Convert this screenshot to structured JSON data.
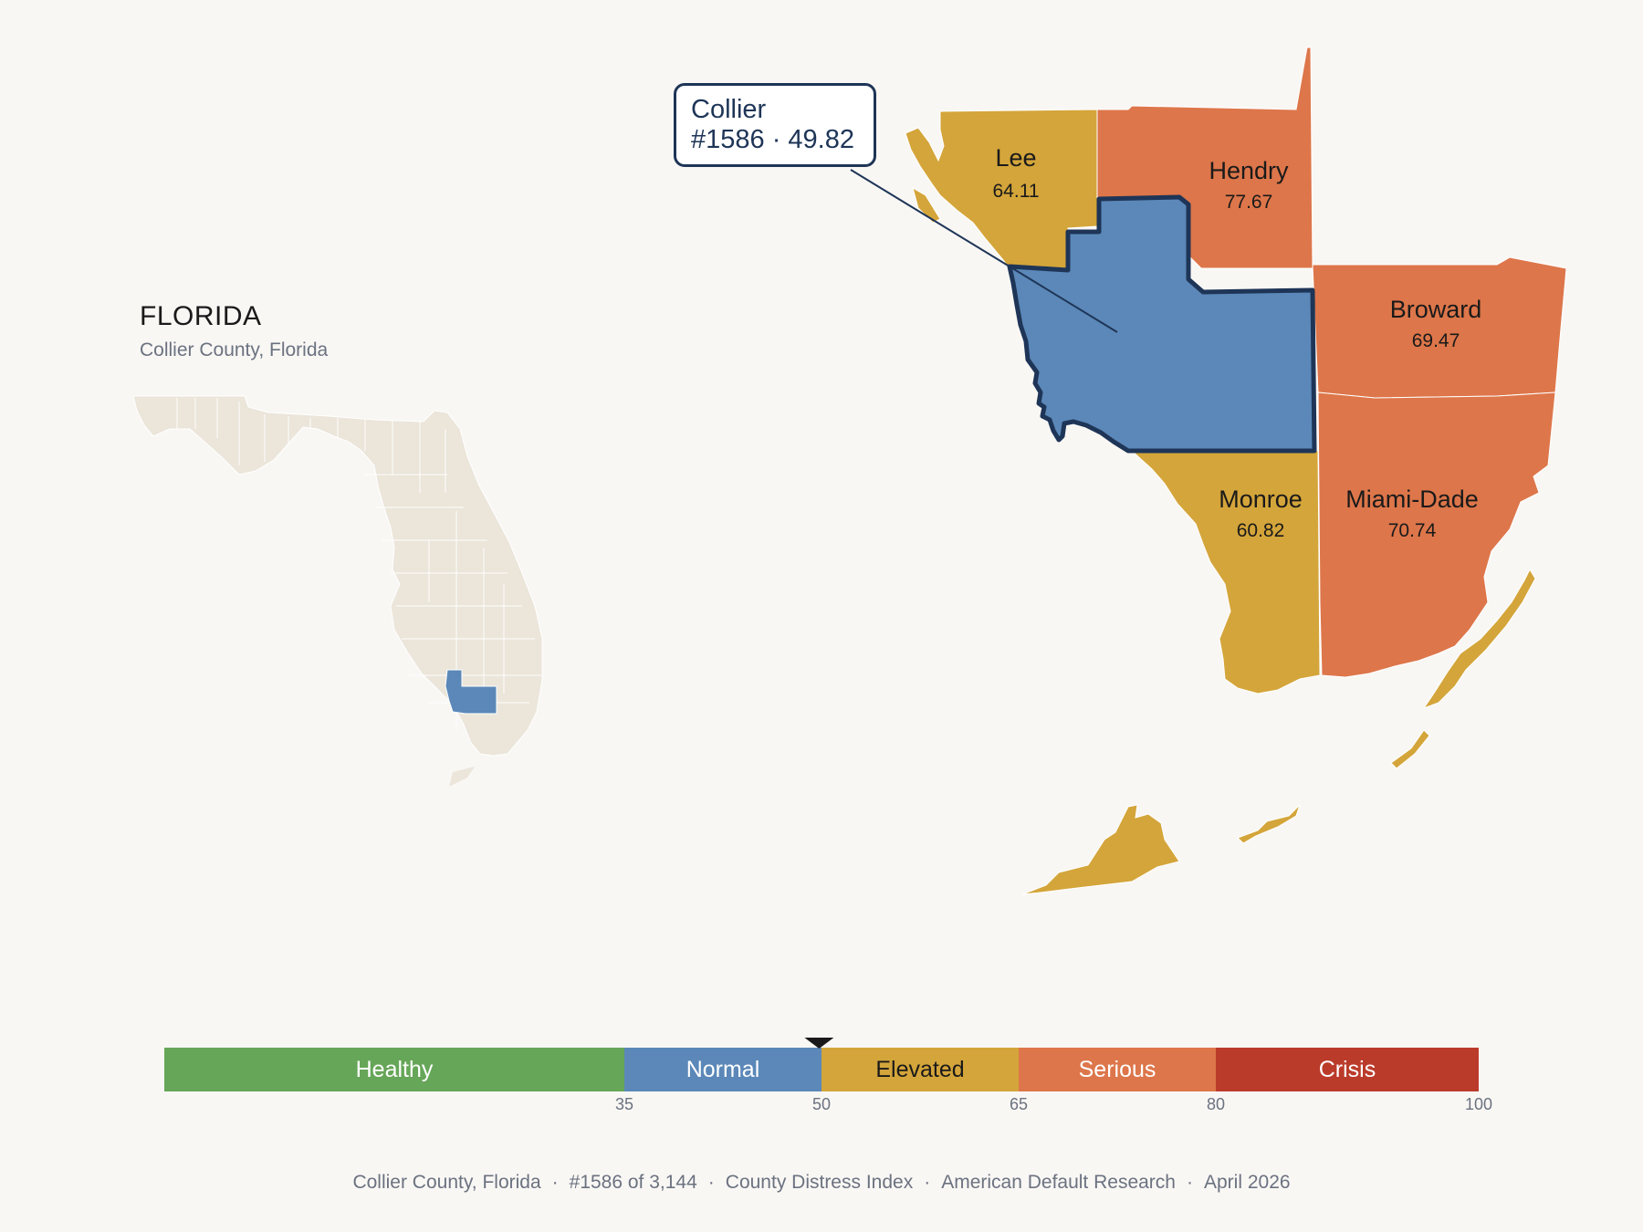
{
  "state": {
    "title": "FLORIDA",
    "subtitle": "Collier County, Florida"
  },
  "callout": {
    "name": "Collier",
    "rank_value": "#1586 · 49.82"
  },
  "counties": [
    {
      "name": "Lee",
      "value": "64.11",
      "category": "Elevated"
    },
    {
      "name": "Hendry",
      "value": "77.67",
      "category": "Serious"
    },
    {
      "name": "Broward",
      "value": "69.47",
      "category": "Serious"
    },
    {
      "name": "Monroe",
      "value": "60.82",
      "category": "Elevated"
    },
    {
      "name": "Miami-Dade",
      "value": "70.74",
      "category": "Serious"
    },
    {
      "name": "Collier",
      "value": "49.82",
      "category": "Normal",
      "highlighted": true
    }
  ],
  "colors": {
    "healthy": "#66a658",
    "normal": "#5b88b8",
    "elevated": "#d4a53a",
    "serious": "#dd764a",
    "crisis": "#bb3b2b",
    "highlight_outline": "#1e3557",
    "state_fill": "#ebe5da"
  },
  "legend": {
    "segments": [
      {
        "label": "Healthy",
        "from": 0,
        "to": 35,
        "color": "#66a658"
      },
      {
        "label": "Normal",
        "from": 35,
        "to": 50,
        "color": "#5b88b8"
      },
      {
        "label": "Elevated",
        "from": 50,
        "to": 65,
        "color": "#d4a53a"
      },
      {
        "label": "Serious",
        "from": 65,
        "to": 80,
        "color": "#dd764a"
      },
      {
        "label": "Crisis",
        "from": 80,
        "to": 100,
        "color": "#bb3b2b"
      }
    ],
    "ticks": [
      "35",
      "50",
      "65",
      "80",
      "100"
    ],
    "marker_value": 49.82
  },
  "footer": [
    "Collier County, Florida",
    "#1586 of 3,144",
    "County Distress Index",
    "American Default Research",
    "April 2026"
  ]
}
